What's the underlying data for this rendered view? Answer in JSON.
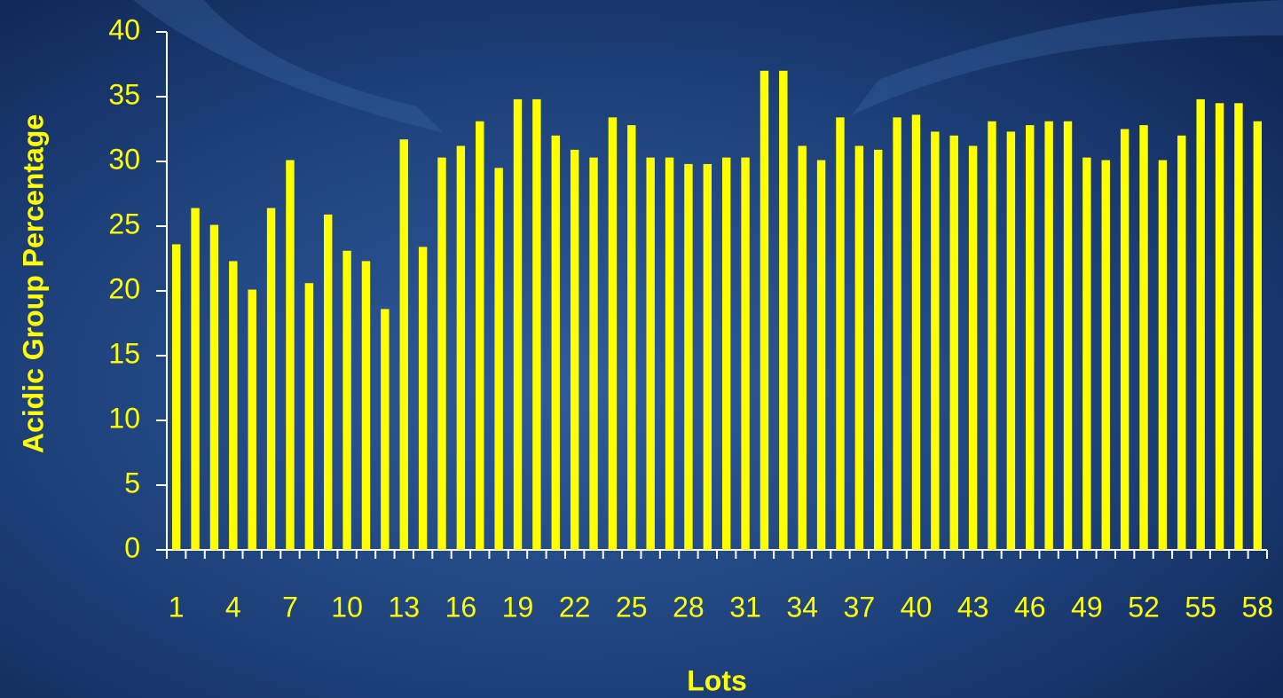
{
  "chart_data": {
    "type": "bar",
    "xlabel": "Lots",
    "ylabel": "Acidic Group Percentage",
    "categories": [
      "1",
      null,
      null,
      "4",
      null,
      null,
      "7",
      null,
      null,
      "10",
      null,
      null,
      "13",
      null,
      null,
      "16",
      null,
      null,
      "19",
      null,
      null,
      "22",
      null,
      null,
      "25",
      null,
      null,
      "28",
      null,
      null,
      "31",
      null,
      null,
      "34",
      null,
      null,
      "37",
      null,
      null,
      "40",
      null,
      null,
      "43",
      null,
      null,
      "46",
      null,
      null,
      "49",
      null,
      null,
      "52",
      null,
      null,
      "55",
      null,
      null,
      "58"
    ],
    "values": [
      23.6,
      26.4,
      25.1,
      22.3,
      20.1,
      26.4,
      30.1,
      20.6,
      25.9,
      23.1,
      22.3,
      18.6,
      31.7,
      23.4,
      30.3,
      31.2,
      33.1,
      29.5,
      34.8,
      34.8,
      32.0,
      30.9,
      30.3,
      33.4,
      32.8,
      30.3,
      30.3,
      29.8,
      29.8,
      30.3,
      30.3,
      37.0,
      37.0,
      31.2,
      30.1,
      33.4,
      31.2,
      30.9,
      33.4,
      33.6,
      32.3,
      32.0,
      31.2,
      33.1,
      32.3,
      32.8,
      33.1,
      33.1,
      30.3,
      30.1,
      32.5,
      32.8,
      30.1,
      32.0,
      34.8,
      34.5,
      34.5,
      33.1
    ],
    "color": "#ffff00",
    "ylim": [
      0,
      40
    ],
    "yticks": [
      0,
      5,
      10,
      15,
      20,
      25,
      30,
      35,
      40
    ],
    "grid": false
  }
}
